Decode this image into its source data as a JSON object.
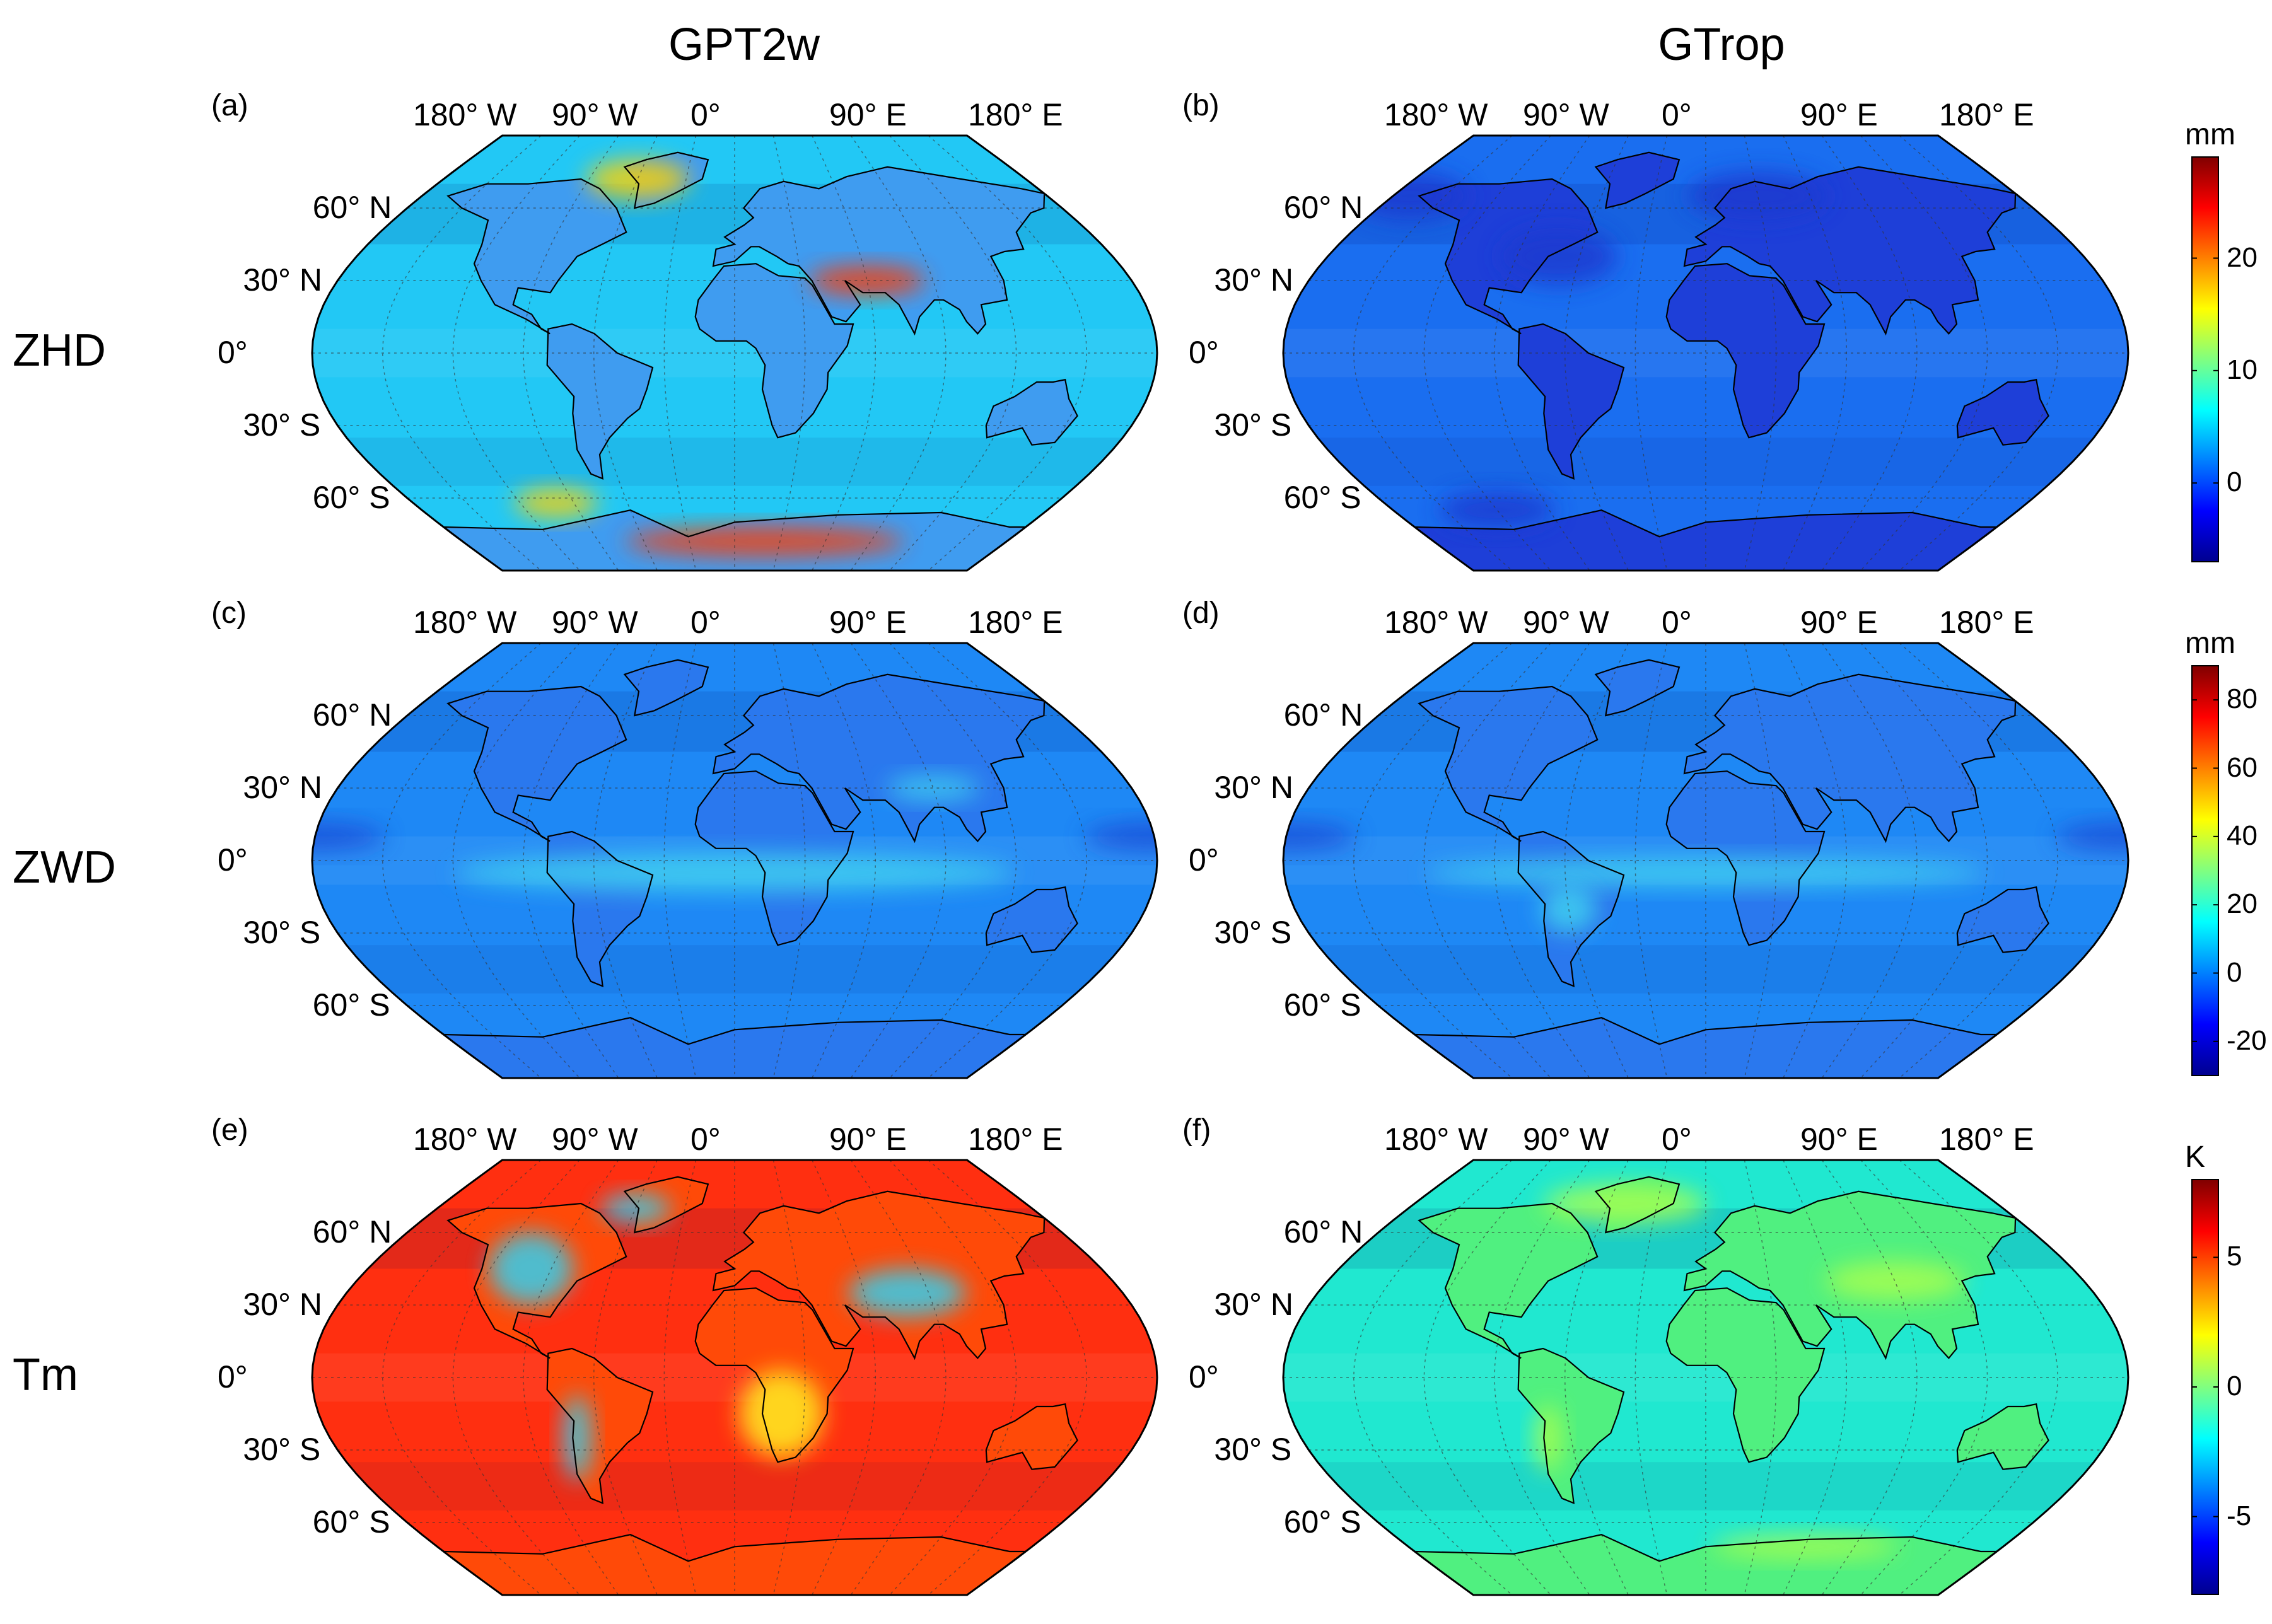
{
  "columns": [
    "GPT2w",
    "GTrop"
  ],
  "rows": [
    "ZHD",
    "ZWD",
    "Tm"
  ],
  "panels": [
    {
      "label": "(a)",
      "model": "GPT2w",
      "param": "ZHD",
      "palette": "blue-cyan-red"
    },
    {
      "label": "(b)",
      "model": "GTrop",
      "param": "ZHD",
      "palette": "deep-blue"
    },
    {
      "label": "(c)",
      "model": "GPT2w",
      "param": "ZWD",
      "palette": "blue"
    },
    {
      "label": "(d)",
      "model": "GTrop",
      "param": "ZWD",
      "palette": "blue"
    },
    {
      "label": "(e)",
      "model": "GPT2w",
      "param": "Tm",
      "palette": "red"
    },
    {
      "label": "(f)",
      "model": "GTrop",
      "param": "Tm",
      "palette": "cyan-green"
    }
  ],
  "lon_labels": [
    "180° W",
    "90° W",
    "0°",
    "90° E",
    "180° E"
  ],
  "lat_labels": [
    "60° N",
    "30° N",
    "0°",
    "30° S",
    "60° S"
  ],
  "colorbars": [
    {
      "unit": "mm",
      "ticks": [
        "20",
        "10",
        "0"
      ],
      "range": [
        -7,
        29
      ]
    },
    {
      "unit": "mm",
      "ticks": [
        "80",
        "60",
        "40",
        "20",
        "0",
        "-20"
      ],
      "range": [
        -30,
        90
      ]
    },
    {
      "unit": "K",
      "ticks": [
        "5",
        "0",
        "-5"
      ],
      "range": [
        -8,
        8
      ]
    }
  ],
  "colors": {
    "jet": [
      "#00008f",
      "#0000ff",
      "#0080ff",
      "#00ffff",
      "#80ff80",
      "#ffff00",
      "#ff8000",
      "#ff0000",
      "#800000"
    ]
  }
}
